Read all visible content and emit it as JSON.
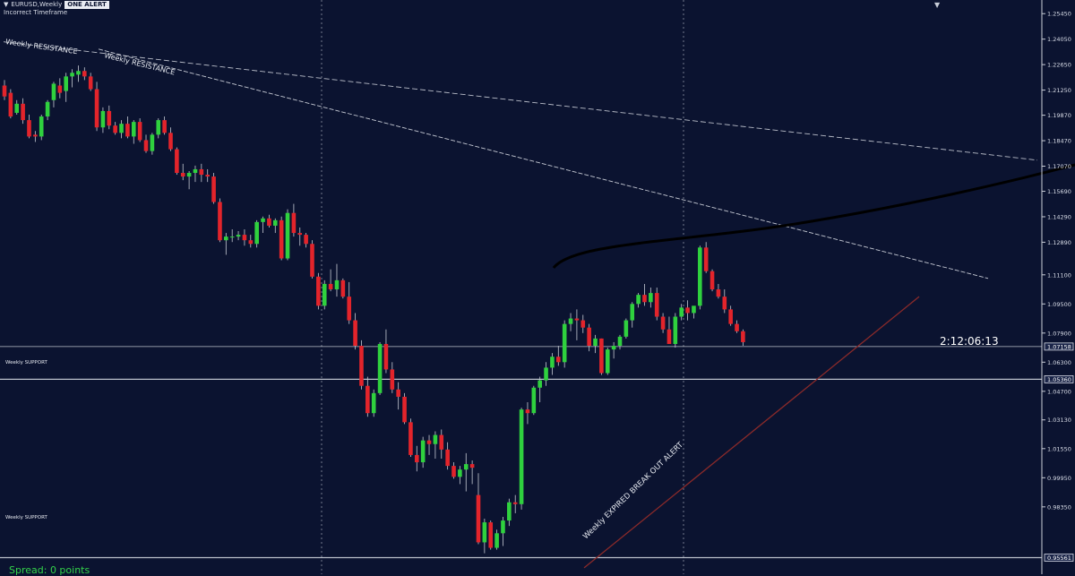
{
  "header": {
    "symbol_line": "EURUSD,Weekly",
    "alert_badge": "ONE ALERT",
    "subtitle": "Incorrect Timeframe"
  },
  "timer": "2:12:06:13",
  "spread": "Spread: 0 points",
  "colors": {
    "background": "#0b1330",
    "bull": "#2fd13e",
    "bear": "#e3242b",
    "grid": "#b7bcc8",
    "text": "#d9dde8",
    "trendline": "#8a2a2a",
    "curve": "#000000"
  },
  "annotations": {
    "weekly_resistance_1": "Weekly RESISTANCE",
    "weekly_resistance_2": "Weekly RESISTANCE",
    "weekly_support_1": "Weekly SUPPORT",
    "weekly_support_2": "Weekly SUPPORT",
    "breakout_alert": "Weekly EXPIRED BREAK OUT ALERT"
  },
  "chart_data": {
    "type": "candlestick",
    "ylim": [
      0.9465,
      1.262
    ],
    "y_ticks": [
      "1.25450",
      "1.24050",
      "1.22650",
      "1.21250",
      "1.19870",
      "1.18470",
      "1.17070",
      "1.15690",
      "1.14290",
      "1.12890",
      "1.11100",
      "1.09500",
      "1.07900",
      "1.06300",
      "1.04700",
      "1.03130",
      "1.01550",
      "0.99950",
      "0.98350"
    ],
    "price_labels": [
      {
        "value": "1.07158",
        "price": 1.07158
      },
      {
        "value": "1.05360",
        "price": 1.0536
      },
      {
        "value": "0.95561",
        "price": 0.95561
      }
    ],
    "horizontal_levels": [
      1.07158,
      1.0536,
      0.95561
    ],
    "candles": [
      [
        1.215,
        1.218,
        1.207,
        1.209
      ],
      [
        1.211,
        1.213,
        1.197,
        1.198
      ],
      [
        1.2,
        1.207,
        1.199,
        1.205
      ],
      [
        1.205,
        1.208,
        1.194,
        1.196
      ],
      [
        1.196,
        1.199,
        1.186,
        1.187
      ],
      [
        1.188,
        1.19,
        1.184,
        1.187
      ],
      [
        1.187,
        1.199,
        1.185,
        1.198
      ],
      [
        1.198,
        1.207,
        1.196,
        1.206
      ],
      [
        1.207,
        1.217,
        1.203,
        1.216
      ],
      [
        1.215,
        1.219,
        1.208,
        1.211
      ],
      [
        1.212,
        1.222,
        1.206,
        1.22
      ],
      [
        1.22,
        1.224,
        1.214,
        1.222
      ],
      [
        1.221,
        1.226,
        1.217,
        1.223
      ],
      [
        1.223,
        1.225,
        1.218,
        1.22
      ],
      [
        1.22,
        1.222,
        1.212,
        1.213
      ],
      [
        1.213,
        1.217,
        1.19,
        1.192
      ],
      [
        1.192,
        1.203,
        1.189,
        1.201
      ],
      [
        1.201,
        1.204,
        1.191,
        1.193
      ],
      [
        1.193,
        1.195,
        1.188,
        1.189
      ],
      [
        1.189,
        1.196,
        1.186,
        1.194
      ],
      [
        1.194,
        1.198,
        1.186,
        1.187
      ],
      [
        1.187,
        1.196,
        1.183,
        1.195
      ],
      [
        1.195,
        1.197,
        1.184,
        1.185
      ],
      [
        1.185,
        1.188,
        1.178,
        1.179
      ],
      [
        1.179,
        1.189,
        1.177,
        1.188
      ],
      [
        1.188,
        1.197,
        1.186,
        1.196
      ],
      [
        1.196,
        1.198,
        1.188,
        1.189
      ],
      [
        1.189,
        1.192,
        1.179,
        1.18
      ],
      [
        1.18,
        1.181,
        1.166,
        1.167
      ],
      [
        1.167,
        1.172,
        1.163,
        1.165
      ],
      [
        1.165,
        1.168,
        1.158,
        1.167
      ],
      [
        1.167,
        1.171,
        1.162,
        1.169
      ],
      [
        1.169,
        1.172,
        1.162,
        1.166
      ],
      [
        1.166,
        1.169,
        1.162,
        1.165
      ],
      [
        1.165,
        1.167,
        1.15,
        1.151
      ],
      [
        1.151,
        1.153,
        1.129,
        1.13
      ],
      [
        1.13,
        1.134,
        1.122,
        1.132
      ],
      [
        1.132,
        1.136,
        1.129,
        1.132
      ],
      [
        1.132,
        1.135,
        1.13,
        1.133
      ],
      [
        1.133,
        1.136,
        1.127,
        1.13
      ],
      [
        1.13,
        1.133,
        1.126,
        1.128
      ],
      [
        1.128,
        1.141,
        1.126,
        1.14
      ],
      [
        1.14,
        1.143,
        1.134,
        1.142
      ],
      [
        1.142,
        1.144,
        1.137,
        1.138
      ],
      [
        1.138,
        1.142,
        1.134,
        1.141
      ],
      [
        1.141,
        1.143,
        1.119,
        1.12
      ],
      [
        1.12,
        1.147,
        1.119,
        1.145
      ],
      [
        1.145,
        1.15,
        1.132,
        1.134
      ],
      [
        1.134,
        1.137,
        1.127,
        1.133
      ],
      [
        1.133,
        1.134,
        1.126,
        1.128
      ],
      [
        1.128,
        1.13,
        1.109,
        1.11
      ],
      [
        1.11,
        1.112,
        1.092,
        1.094
      ],
      [
        1.094,
        1.108,
        1.092,
        1.106
      ],
      [
        1.106,
        1.114,
        1.102,
        1.103
      ],
      [
        1.103,
        1.117,
        1.099,
        1.108
      ],
      [
        1.108,
        1.109,
        1.098,
        1.099
      ],
      [
        1.099,
        1.107,
        1.084,
        1.086
      ],
      [
        1.086,
        1.09,
        1.07,
        1.072
      ],
      [
        1.072,
        1.075,
        1.048,
        1.05
      ],
      [
        1.05,
        1.055,
        1.033,
        1.035
      ],
      [
        1.035,
        1.048,
        1.033,
        1.046
      ],
      [
        1.046,
        1.074,
        1.045,
        1.073
      ],
      [
        1.073,
        1.081,
        1.057,
        1.059
      ],
      [
        1.059,
        1.063,
        1.046,
        1.048
      ],
      [
        1.048,
        1.052,
        1.037,
        1.044
      ],
      [
        1.044,
        1.046,
        1.029,
        1.03
      ],
      [
        1.03,
        1.032,
        1.011,
        1.012
      ],
      [
        1.012,
        1.017,
        1.003,
        1.008
      ],
      [
        1.008,
        1.022,
        1.005,
        1.02
      ],
      [
        1.02,
        1.023,
        1.012,
        1.018
      ],
      [
        1.018,
        1.025,
        1.01,
        1.023
      ],
      [
        1.023,
        1.026,
        1.01,
        1.015
      ],
      [
        1.015,
        1.019,
        1.004,
        1.006
      ],
      [
        1.006,
        1.008,
        0.999,
        1.0
      ],
      [
        1.0,
        1.006,
        0.996,
        1.004
      ],
      [
        1.004,
        1.013,
        0.992,
        1.007
      ],
      [
        1.007,
        1.009,
        0.996,
        1.005
      ],
      [
        0.99,
        1.002,
        0.963,
        0.964
      ],
      [
        0.964,
        0.977,
        0.958,
        0.975
      ],
      [
        0.975,
        0.976,
        0.96,
        0.961
      ],
      [
        0.961,
        0.971,
        0.96,
        0.969
      ],
      [
        0.969,
        0.978,
        0.962,
        0.976
      ],
      [
        0.976,
        0.988,
        0.973,
        0.986
      ],
      [
        0.986,
        0.99,
        0.98,
        0.985
      ],
      [
        0.985,
        1.038,
        0.982,
        1.037
      ],
      [
        1.037,
        1.041,
        1.029,
        1.035
      ],
      [
        1.035,
        1.05,
        1.034,
        1.049
      ],
      [
        1.049,
        1.055,
        1.041,
        1.053
      ],
      [
        1.053,
        1.063,
        1.05,
        1.06
      ],
      [
        1.06,
        1.068,
        1.056,
        1.066
      ],
      [
        1.066,
        1.072,
        1.061,
        1.063
      ],
      [
        1.063,
        1.086,
        1.06,
        1.084
      ],
      [
        1.084,
        1.09,
        1.08,
        1.087
      ],
      [
        1.087,
        1.092,
        1.075,
        1.086
      ],
      [
        1.086,
        1.089,
        1.079,
        1.082
      ],
      [
        1.082,
        1.084,
        1.069,
        1.072
      ],
      [
        1.072,
        1.078,
        1.068,
        1.076
      ],
      [
        1.076,
        1.076,
        1.056,
        1.057
      ],
      [
        1.057,
        1.071,
        1.056,
        1.07
      ],
      [
        1.07,
        1.074,
        1.065,
        1.072
      ],
      [
        1.072,
        1.078,
        1.07,
        1.077
      ],
      [
        1.077,
        1.087,
        1.076,
        1.086
      ],
      [
        1.086,
        1.096,
        1.082,
        1.095
      ],
      [
        1.095,
        1.101,
        1.093,
        1.1
      ],
      [
        1.1,
        1.106,
        1.094,
        1.096
      ],
      [
        1.096,
        1.104,
        1.093,
        1.101
      ],
      [
        1.101,
        1.104,
        1.086,
        1.088
      ],
      [
        1.088,
        1.09,
        1.079,
        1.081
      ],
      [
        1.081,
        1.088,
        1.073,
        1.073
      ],
      [
        1.073,
        1.09,
        1.071,
        1.088
      ],
      [
        1.088,
        1.095,
        1.086,
        1.093
      ],
      [
        1.093,
        1.097,
        1.086,
        1.09
      ],
      [
        1.09,
        1.093,
        1.087,
        1.094
      ],
      [
        1.094,
        1.127,
        1.092,
        1.126
      ],
      [
        1.126,
        1.129,
        1.112,
        1.113
      ],
      [
        1.113,
        1.114,
        1.102,
        1.103
      ],
      [
        1.103,
        1.106,
        1.098,
        1.099
      ],
      [
        1.099,
        1.103,
        1.09,
        1.092
      ],
      [
        1.092,
        1.094,
        1.083,
        1.084
      ],
      [
        1.084,
        1.086,
        1.079,
        1.08
      ],
      [
        1.08,
        1.081,
        1.072,
        1.074
      ]
    ]
  }
}
